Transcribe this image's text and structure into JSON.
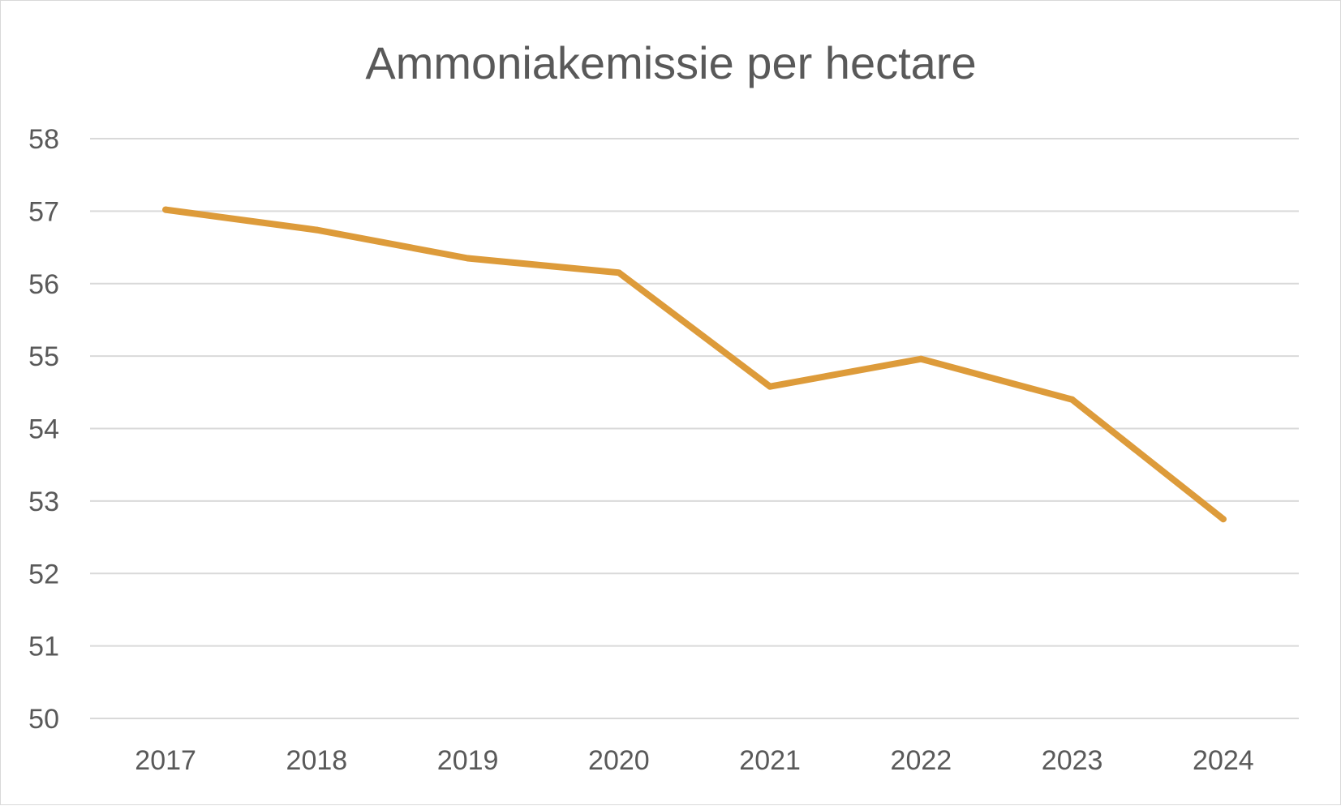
{
  "chart_data": {
    "type": "line",
    "title": "Ammoniakemissie per hectare",
    "xlabel": "",
    "ylabel": "",
    "categories": [
      "2017",
      "2018",
      "2019",
      "2020",
      "2021",
      "2022",
      "2023",
      "2024"
    ],
    "series": [
      {
        "values": [
          57.02,
          56.74,
          56.35,
          56.15,
          54.58,
          54.96,
          54.4,
          52.75
        ],
        "color": "#dd9b3a"
      }
    ],
    "ylim": [
      50,
      58
    ],
    "yticks": [
      "50",
      "51",
      "52",
      "53",
      "54",
      "55",
      "56",
      "57",
      "58"
    ],
    "grid": true,
    "legend": "none",
    "gridline_color": "#d9d9d9",
    "text_color": "#595959"
  }
}
